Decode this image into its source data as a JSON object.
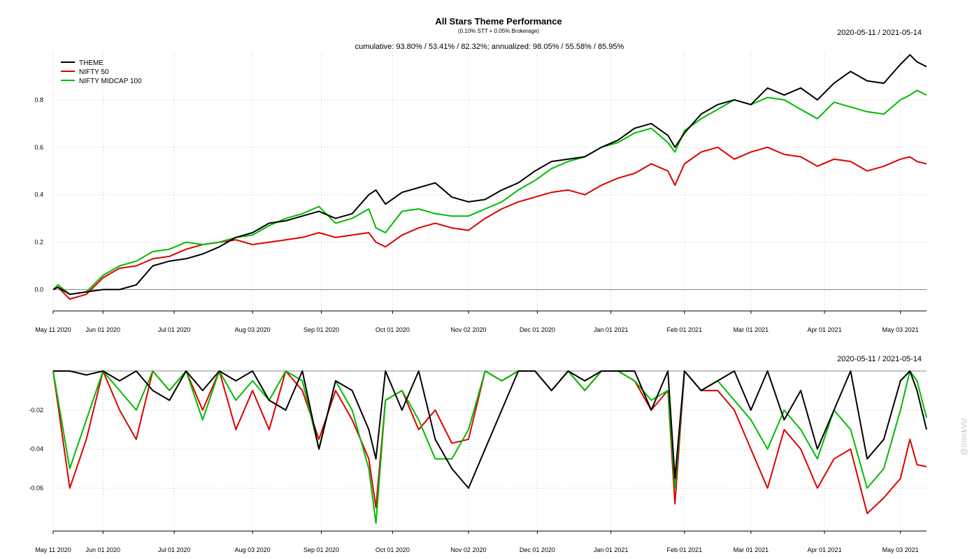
{
  "colors": {
    "theme": "#000000",
    "nifty50": "#dd0000",
    "midcap": "#00bb00",
    "grid": "#c8c8c8"
  },
  "chart_data": [
    {
      "type": "line",
      "title": "All Stars Theme Performance",
      "subtitle": "(0.10% STT + 0.05% Brokerage)",
      "stats": "cumulative: 93.80% / 53.41% / 82.32%; annualized: 98.05% / 55.58% / 85.95%",
      "date_range": "2020-05-11 / 2021-05-14",
      "watermark": "@StockViz",
      "x_ticks": [
        "May 11 2020",
        "Jun 01 2020",
        "Jul 01 2020",
        "Aug 03 2020",
        "Sep 01 2020",
        "Oct 01 2020",
        "Nov 02 2020",
        "Dec 01 2020",
        "Jan 01 2021",
        "Feb 01 2021",
        "Mar 01 2021",
        "Apr 01 2021",
        "May 03 2021"
      ],
      "y_ticks": [
        "0.0",
        "0.2",
        "0.4",
        "0.6",
        "0.8"
      ],
      "ylim": [
        -0.09,
        1.0
      ],
      "legend_position": "top-left",
      "grid": true,
      "series": [
        {
          "name": "THEME",
          "x": [
            "2020-05-11",
            "2020-05-13",
            "2020-05-18",
            "2020-05-25",
            "2020-06-01",
            "2020-06-08",
            "2020-06-15",
            "2020-06-22",
            "2020-06-29",
            "2020-07-06",
            "2020-07-13",
            "2020-07-20",
            "2020-07-27",
            "2020-08-03",
            "2020-08-10",
            "2020-08-17",
            "2020-08-24",
            "2020-08-31",
            "2020-09-07",
            "2020-09-14",
            "2020-09-21",
            "2020-09-24",
            "2020-09-28",
            "2020-10-05",
            "2020-10-12",
            "2020-10-19",
            "2020-10-26",
            "2020-11-02",
            "2020-11-09",
            "2020-11-16",
            "2020-11-23",
            "2020-11-30",
            "2020-12-07",
            "2020-12-14",
            "2020-12-21",
            "2020-12-28",
            "2021-01-04",
            "2021-01-11",
            "2021-01-18",
            "2021-01-25",
            "2021-01-28",
            "2021-02-01",
            "2021-02-08",
            "2021-02-15",
            "2021-02-22",
            "2021-03-01",
            "2021-03-08",
            "2021-03-15",
            "2021-03-22",
            "2021-03-29",
            "2021-04-05",
            "2021-04-12",
            "2021-04-19",
            "2021-04-26",
            "2021-05-03",
            "2021-05-07",
            "2021-05-10",
            "2021-05-14"
          ],
          "values": [
            0.0,
            0.01,
            -0.02,
            -0.01,
            0.0,
            0.0,
            0.02,
            0.1,
            0.12,
            0.13,
            0.15,
            0.18,
            0.22,
            0.24,
            0.28,
            0.29,
            0.31,
            0.33,
            0.3,
            0.32,
            0.4,
            0.42,
            0.36,
            0.41,
            0.43,
            0.45,
            0.39,
            0.37,
            0.38,
            0.42,
            0.45,
            0.5,
            0.54,
            0.55,
            0.56,
            0.6,
            0.63,
            0.68,
            0.7,
            0.65,
            0.6,
            0.66,
            0.74,
            0.78,
            0.8,
            0.78,
            0.85,
            0.82,
            0.85,
            0.8,
            0.87,
            0.92,
            0.88,
            0.87,
            0.95,
            0.99,
            0.96,
            0.94
          ]
        },
        {
          "name": "NIFTY 50",
          "x": [
            "2020-05-11",
            "2020-05-13",
            "2020-05-18",
            "2020-05-25",
            "2020-06-01",
            "2020-06-08",
            "2020-06-15",
            "2020-06-22",
            "2020-06-29",
            "2020-07-06",
            "2020-07-13",
            "2020-07-20",
            "2020-07-27",
            "2020-08-03",
            "2020-08-10",
            "2020-08-17",
            "2020-08-24",
            "2020-08-31",
            "2020-09-07",
            "2020-09-14",
            "2020-09-21",
            "2020-09-24",
            "2020-09-28",
            "2020-10-05",
            "2020-10-12",
            "2020-10-19",
            "2020-10-26",
            "2020-11-02",
            "2020-11-09",
            "2020-11-16",
            "2020-11-23",
            "2020-11-30",
            "2020-12-07",
            "2020-12-14",
            "2020-12-21",
            "2020-12-28",
            "2021-01-04",
            "2021-01-11",
            "2021-01-18",
            "2021-01-25",
            "2021-01-28",
            "2021-02-01",
            "2021-02-08",
            "2021-02-15",
            "2021-02-22",
            "2021-03-01",
            "2021-03-08",
            "2021-03-15",
            "2021-03-22",
            "2021-03-29",
            "2021-04-05",
            "2021-04-12",
            "2021-04-19",
            "2021-04-26",
            "2021-05-03",
            "2021-05-07",
            "2021-05-10",
            "2021-05-14"
          ],
          "values": [
            0.0,
            0.01,
            -0.04,
            -0.02,
            0.05,
            0.09,
            0.1,
            0.13,
            0.14,
            0.17,
            0.19,
            0.2,
            0.21,
            0.19,
            0.2,
            0.21,
            0.22,
            0.24,
            0.22,
            0.23,
            0.24,
            0.2,
            0.18,
            0.23,
            0.26,
            0.28,
            0.26,
            0.25,
            0.3,
            0.34,
            0.37,
            0.39,
            0.41,
            0.42,
            0.4,
            0.44,
            0.47,
            0.49,
            0.53,
            0.5,
            0.44,
            0.53,
            0.58,
            0.6,
            0.55,
            0.58,
            0.6,
            0.57,
            0.56,
            0.52,
            0.55,
            0.54,
            0.5,
            0.52,
            0.55,
            0.56,
            0.54,
            0.53
          ]
        },
        {
          "name": "NIFTY MIDCAP 100",
          "x": [
            "2020-05-11",
            "2020-05-13",
            "2020-05-18",
            "2020-05-25",
            "2020-06-01",
            "2020-06-08",
            "2020-06-15",
            "2020-06-22",
            "2020-06-29",
            "2020-07-06",
            "2020-07-13",
            "2020-07-20",
            "2020-07-27",
            "2020-08-03",
            "2020-08-10",
            "2020-08-17",
            "2020-08-24",
            "2020-08-31",
            "2020-09-07",
            "2020-09-14",
            "2020-09-21",
            "2020-09-24",
            "2020-09-28",
            "2020-10-05",
            "2020-10-12",
            "2020-10-19",
            "2020-10-26",
            "2020-11-02",
            "2020-11-09",
            "2020-11-16",
            "2020-11-23",
            "2020-11-30",
            "2020-12-07",
            "2020-12-14",
            "2020-12-21",
            "2020-12-28",
            "2021-01-04",
            "2021-01-11",
            "2021-01-18",
            "2021-01-25",
            "2021-01-28",
            "2021-02-01",
            "2021-02-08",
            "2021-02-15",
            "2021-02-22",
            "2021-03-01",
            "2021-03-08",
            "2021-03-15",
            "2021-03-22",
            "2021-03-29",
            "2021-04-05",
            "2021-04-12",
            "2021-04-19",
            "2021-04-26",
            "2021-05-03",
            "2021-05-07",
            "2021-05-10",
            "2021-05-14"
          ],
          "values": [
            0.0,
            0.02,
            -0.02,
            -0.01,
            0.06,
            0.1,
            0.12,
            0.16,
            0.17,
            0.2,
            0.19,
            0.2,
            0.22,
            0.23,
            0.27,
            0.3,
            0.32,
            0.35,
            0.28,
            0.3,
            0.34,
            0.26,
            0.24,
            0.33,
            0.34,
            0.32,
            0.31,
            0.31,
            0.34,
            0.37,
            0.42,
            0.46,
            0.51,
            0.54,
            0.56,
            0.6,
            0.62,
            0.66,
            0.68,
            0.62,
            0.58,
            0.67,
            0.72,
            0.76,
            0.8,
            0.78,
            0.81,
            0.8,
            0.76,
            0.72,
            0.79,
            0.77,
            0.75,
            0.74,
            0.8,
            0.82,
            0.84,
            0.82
          ]
        }
      ]
    },
    {
      "type": "line",
      "title": "",
      "date_range": "2020-05-11 / 2021-05-14",
      "x_ticks": [
        "May 11 2020",
        "Jun 01 2020",
        "Jul 01 2020",
        "Aug 03 2020",
        "Sep 01 2020",
        "Oct 01 2020",
        "Nov 02 2020",
        "Dec 01 2020",
        "Jan 01 2021",
        "Feb 01 2021",
        "Mar 01 2021",
        "Apr 01 2021",
        "May 03 2021"
      ],
      "y_ticks": [
        "-0.02",
        "-0.04",
        "-0.06"
      ],
      "ylim": [
        -0.082,
        0.0
      ],
      "grid": true,
      "series": [
        {
          "name": "THEME",
          "x": [
            "2020-05-11",
            "2020-05-18",
            "2020-05-25",
            "2020-06-01",
            "2020-06-08",
            "2020-06-15",
            "2020-06-22",
            "2020-06-29",
            "2020-07-06",
            "2020-07-13",
            "2020-07-20",
            "2020-07-27",
            "2020-08-03",
            "2020-08-10",
            "2020-08-17",
            "2020-08-24",
            "2020-08-31",
            "2020-09-07",
            "2020-09-14",
            "2020-09-21",
            "2020-09-24",
            "2020-09-28",
            "2020-10-05",
            "2020-10-12",
            "2020-10-19",
            "2020-10-26",
            "2020-11-02",
            "2020-11-09",
            "2020-11-16",
            "2020-11-23",
            "2020-11-30",
            "2020-12-07",
            "2020-12-14",
            "2020-12-21",
            "2020-12-28",
            "2021-01-04",
            "2021-01-11",
            "2021-01-18",
            "2021-01-25",
            "2021-01-28",
            "2021-02-01",
            "2021-02-08",
            "2021-02-15",
            "2021-02-22",
            "2021-03-01",
            "2021-03-08",
            "2021-03-15",
            "2021-03-22",
            "2021-03-29",
            "2021-04-05",
            "2021-04-12",
            "2021-04-19",
            "2021-04-26",
            "2021-05-03",
            "2021-05-07",
            "2021-05-10",
            "2021-05-14"
          ],
          "values": [
            0.0,
            0.0,
            -0.002,
            0.0,
            -0.005,
            0.0,
            -0.01,
            -0.015,
            0.0,
            -0.01,
            0.0,
            -0.005,
            0.0,
            -0.015,
            -0.02,
            0.0,
            -0.04,
            -0.005,
            -0.01,
            -0.03,
            -0.045,
            0.0,
            -0.02,
            0.0,
            -0.035,
            -0.05,
            -0.06,
            -0.04,
            -0.02,
            0.0,
            0.0,
            -0.01,
            0.0,
            -0.005,
            0.0,
            0.0,
            0.0,
            -0.02,
            0.0,
            -0.055,
            0.0,
            -0.01,
            -0.005,
            0.0,
            -0.02,
            0.0,
            -0.025,
            -0.01,
            -0.04,
            -0.02,
            0.0,
            -0.045,
            -0.035,
            -0.005,
            0.0,
            -0.01,
            -0.03
          ]
        },
        {
          "name": "NIFTY 50",
          "x": [
            "2020-05-11",
            "2020-05-18",
            "2020-05-25",
            "2020-06-01",
            "2020-06-08",
            "2020-06-15",
            "2020-06-22",
            "2020-06-29",
            "2020-07-06",
            "2020-07-13",
            "2020-07-20",
            "2020-07-27",
            "2020-08-03",
            "2020-08-10",
            "2020-08-17",
            "2020-08-24",
            "2020-08-31",
            "2020-09-07",
            "2020-09-14",
            "2020-09-21",
            "2020-09-24",
            "2020-09-28",
            "2020-10-05",
            "2020-10-12",
            "2020-10-19",
            "2020-10-26",
            "2020-11-02",
            "2020-11-09",
            "2020-11-16",
            "2020-11-23",
            "2020-11-30",
            "2020-12-07",
            "2020-12-14",
            "2020-12-21",
            "2020-12-28",
            "2021-01-04",
            "2021-01-11",
            "2021-01-18",
            "2021-01-25",
            "2021-01-28",
            "2021-02-01",
            "2021-02-08",
            "2021-02-15",
            "2021-02-22",
            "2021-03-01",
            "2021-03-08",
            "2021-03-15",
            "2021-03-22",
            "2021-03-29",
            "2021-04-05",
            "2021-04-12",
            "2021-04-19",
            "2021-04-26",
            "2021-05-03",
            "2021-05-07",
            "2021-05-10",
            "2021-05-14"
          ],
          "values": [
            0.0,
            -0.06,
            -0.035,
            0.0,
            -0.02,
            -0.035,
            0.0,
            -0.01,
            0.0,
            -0.02,
            0.0,
            -0.03,
            -0.01,
            -0.03,
            0.0,
            -0.01,
            -0.035,
            -0.01,
            -0.025,
            -0.045,
            -0.07,
            -0.015,
            -0.01,
            -0.03,
            -0.02,
            -0.037,
            -0.035,
            0.0,
            -0.005,
            0.0,
            0.0,
            -0.01,
            0.0,
            -0.01,
            0.0,
            0.0,
            -0.005,
            -0.02,
            -0.01,
            -0.068,
            0.0,
            -0.01,
            -0.01,
            -0.02,
            -0.04,
            -0.06,
            -0.03,
            -0.04,
            -0.06,
            -0.045,
            -0.04,
            -0.073,
            -0.065,
            -0.055,
            -0.035,
            -0.048,
            -0.049
          ]
        },
        {
          "name": "NIFTY MIDCAP 100",
          "x": [
            "2020-05-11",
            "2020-05-18",
            "2020-05-25",
            "2020-06-01",
            "2020-06-08",
            "2020-06-15",
            "2020-06-22",
            "2020-06-29",
            "2020-07-06",
            "2020-07-13",
            "2020-07-20",
            "2020-07-27",
            "2020-08-03",
            "2020-08-10",
            "2020-08-17",
            "2020-08-24",
            "2020-08-31",
            "2020-09-07",
            "2020-09-14",
            "2020-09-21",
            "2020-09-24",
            "2020-09-28",
            "2020-10-05",
            "2020-10-12",
            "2020-10-19",
            "2020-10-26",
            "2020-11-02",
            "2020-11-09",
            "2020-11-16",
            "2020-11-23",
            "2020-11-30",
            "2020-12-07",
            "2020-12-14",
            "2020-12-21",
            "2020-12-28",
            "2021-01-04",
            "2021-01-11",
            "2021-01-18",
            "2021-01-25",
            "2021-01-28",
            "2021-02-01",
            "2021-02-08",
            "2021-02-15",
            "2021-02-22",
            "2021-03-01",
            "2021-03-08",
            "2021-03-15",
            "2021-03-22",
            "2021-03-29",
            "2021-04-05",
            "2021-04-12",
            "2021-04-19",
            "2021-04-26",
            "2021-05-03",
            "2021-05-07",
            "2021-05-10",
            "2021-05-14"
          ],
          "values": [
            0.0,
            -0.05,
            -0.025,
            0.0,
            -0.01,
            -0.02,
            0.0,
            -0.01,
            0.0,
            -0.025,
            0.0,
            -0.015,
            -0.005,
            -0.015,
            0.0,
            -0.005,
            -0.04,
            -0.005,
            -0.02,
            -0.05,
            -0.078,
            -0.015,
            -0.01,
            -0.025,
            -0.045,
            -0.045,
            -0.03,
            0.0,
            -0.005,
            0.0,
            0.0,
            -0.01,
            0.0,
            -0.01,
            0.0,
            0.0,
            -0.005,
            -0.015,
            -0.01,
            -0.06,
            0.0,
            -0.01,
            -0.005,
            -0.015,
            -0.025,
            -0.04,
            -0.02,
            -0.03,
            -0.045,
            -0.02,
            -0.03,
            -0.06,
            -0.05,
            -0.02,
            0.0,
            -0.005,
            -0.024
          ]
        }
      ]
    }
  ]
}
